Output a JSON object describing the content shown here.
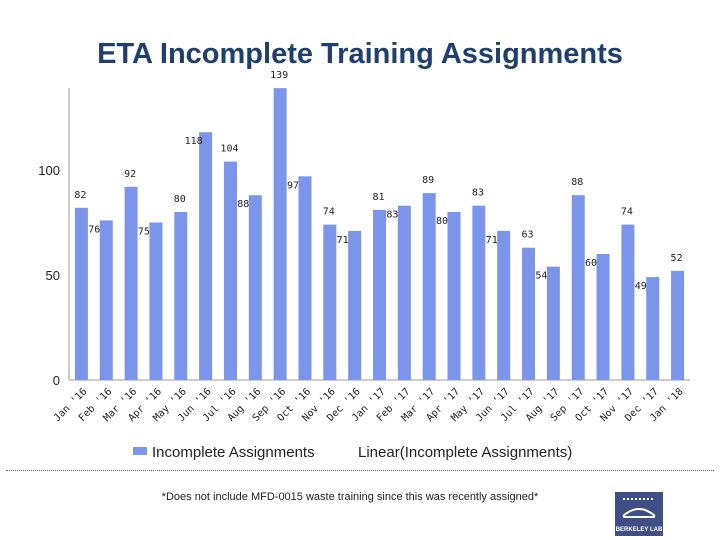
{
  "chart_data": {
    "type": "bar",
    "title": "ETA Incomplete Training Assignments",
    "categories": [
      "Jan '16",
      "Feb '16",
      "Mar '16",
      "Apr '16",
      "May '16",
      "Jun '16",
      "Jul '16",
      "Aug '16",
      "Sep '16",
      "Oct '16",
      "Nov '16",
      "Dec '16",
      "Jan '17",
      "Feb '17",
      "Mar '17",
      "Apr '17",
      "May '17",
      "Jun '17",
      "Jul '17",
      "Aug '17",
      "Sep '17",
      "Oct '17",
      "Nov '17",
      "Dec '17",
      "Jan '18"
    ],
    "series": [
      {
        "name": "Incomplete Assignments",
        "values": [
          82,
          76,
          92,
          75,
          80,
          118,
          104,
          88,
          139,
          97,
          74,
          71,
          81,
          83,
          89,
          80,
          83,
          71,
          63,
          54,
          88,
          60,
          74,
          49,
          52
        ]
      }
    ],
    "yticks": [
      "0",
      "50",
      "100"
    ],
    "ylim": [
      0,
      140
    ],
    "xlabel": "",
    "ylabel": "",
    "grid": false,
    "legend_position": "bottom",
    "bar_color": "#7b95ea"
  },
  "legend": {
    "series_label": "Incomplete Assignments",
    "trend_label": "Linear(Incomplete Assignments)"
  },
  "footnote": "*Does not include MFD-0015 waste training since this was recently assigned*",
  "logo": {
    "text": "BERKELEY LAB",
    "color": "#3f4f86"
  }
}
